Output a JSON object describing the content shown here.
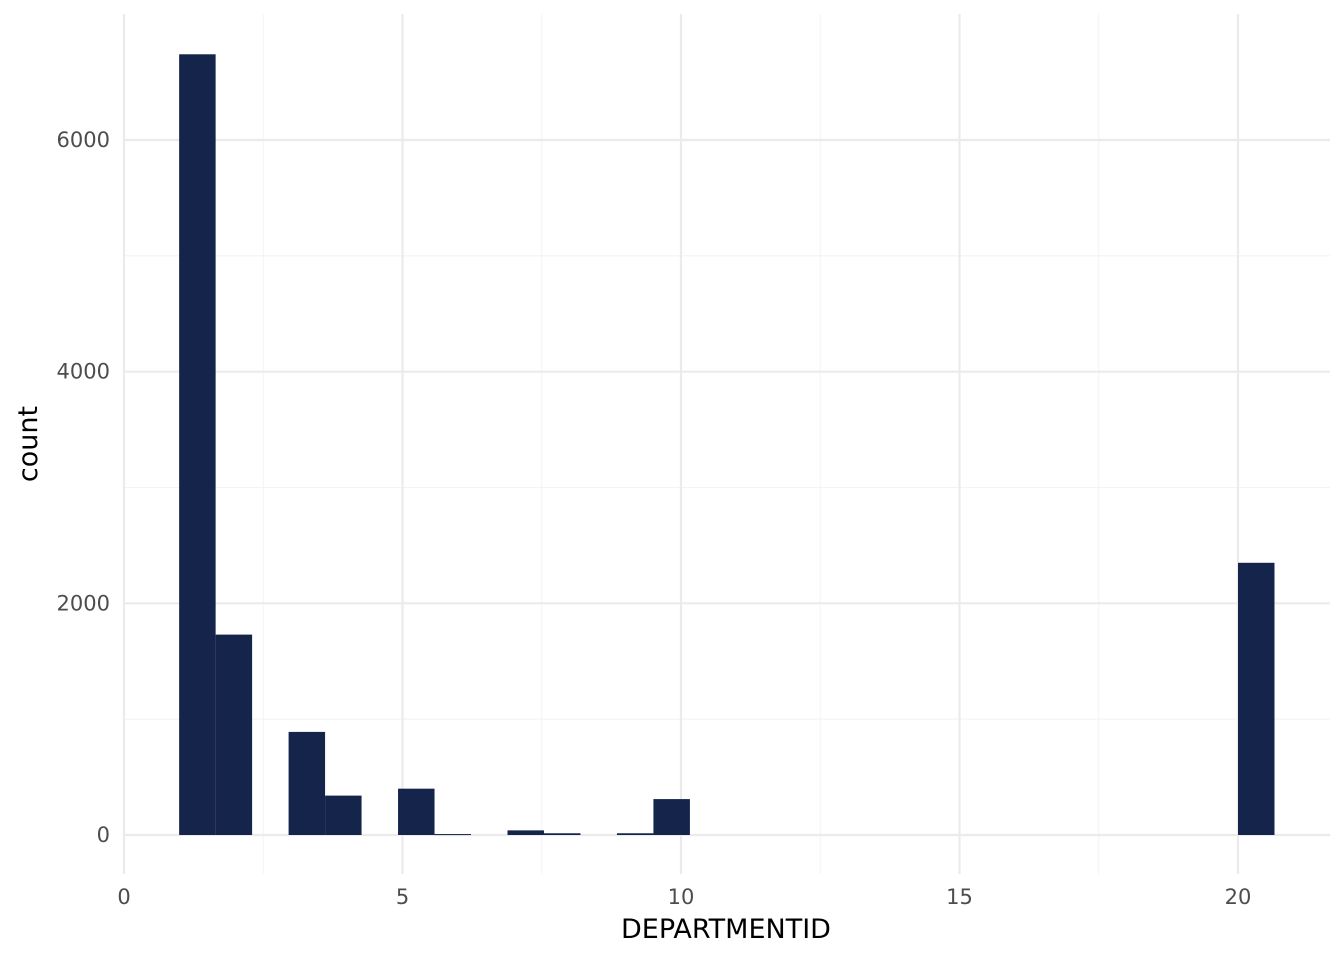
{
  "chart_data": {
    "type": "bar",
    "title": "",
    "xlabel": "DEPARTMENTID",
    "ylabel": "count",
    "xlim": [
      0,
      21.6
    ],
    "ylim": [
      -330,
      7000
    ],
    "x_ticks": [
      0,
      5,
      10,
      15,
      20
    ],
    "x_tick_labels": [
      "0",
      "5",
      "10",
      "15",
      "20"
    ],
    "y_ticks": [
      0,
      2000,
      4000,
      6000
    ],
    "y_tick_labels": [
      "0",
      "2000",
      "4000",
      "6000"
    ],
    "x_minor_ticks": [
      2.5,
      7.5,
      12.5,
      17.5
    ],
    "y_minor_ticks": [
      1000,
      3000,
      5000
    ],
    "grid": true,
    "bin_width": 0.655,
    "bins": [
      {
        "x_start": 0.99,
        "x_end": 1.645,
        "count": 6740
      },
      {
        "x_start": 1.645,
        "x_end": 2.3,
        "count": 1730
      },
      {
        "x_start": 2.955,
        "x_end": 3.61,
        "count": 890
      },
      {
        "x_start": 3.61,
        "x_end": 4.265,
        "count": 340
      },
      {
        "x_start": 4.92,
        "x_end": 5.575,
        "count": 400
      },
      {
        "x_start": 5.575,
        "x_end": 6.23,
        "count": 8
      },
      {
        "x_start": 6.885,
        "x_end": 7.54,
        "count": 40
      },
      {
        "x_start": 7.54,
        "x_end": 8.195,
        "count": 15
      },
      {
        "x_start": 8.85,
        "x_end": 9.505,
        "count": 15
      },
      {
        "x_start": 9.505,
        "x_end": 10.16,
        "count": 310
      },
      {
        "x_start": 20.0,
        "x_end": 20.655,
        "count": 2350
      }
    ],
    "colors": {
      "bar": "#14244a",
      "grid_major": "#ebebeb",
      "grid_minor": "#f3f3f3",
      "tick_text": "#4d4d4d",
      "axis_title": "#000000"
    }
  }
}
